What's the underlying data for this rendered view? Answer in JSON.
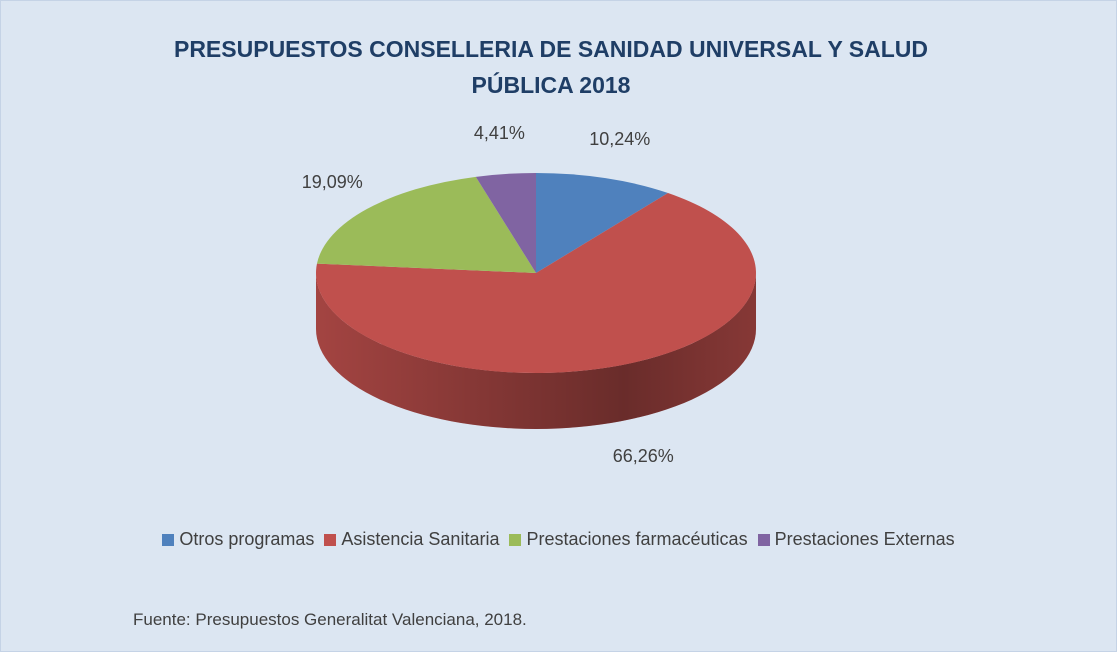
{
  "chart_data": {
    "type": "pie3d",
    "title": "PRESUPUESTOS CONSELLERIA DE SANIDAD UNIVERSAL Y SALUD PÚBLICA 2018",
    "categories": [
      "Otros programas",
      "Asistencia Sanitaria",
      "Prestaciones farmacéuticas",
      "Prestaciones Externas"
    ],
    "values": [
      10.24,
      66.26,
      19.09,
      4.41
    ],
    "value_labels": [
      "10,24%",
      "66,26%",
      "19,09%",
      "4,41%"
    ],
    "colors": [
      "#4f81bd",
      "#c0504d",
      "#9bbb59",
      "#8064a2"
    ],
    "legend": "bottom",
    "source": "Fuente: Presupuestos Generalitat Valenciana, 2018."
  }
}
